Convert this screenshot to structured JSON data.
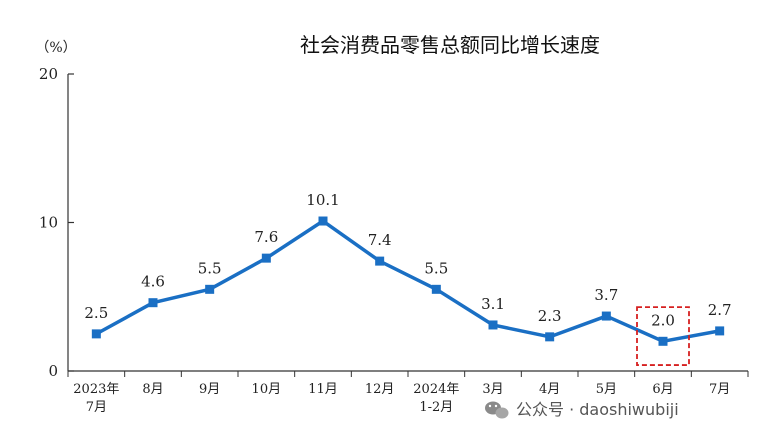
{
  "watermark": {
    "text": "公众号 · daoshiwubiji",
    "icon": "wechat-icon"
  },
  "chart_data": {
    "type": "line",
    "title": "社会消费品零售总额同比增长速度",
    "unit": "（%）",
    "categories": [
      [
        "2023年",
        "7月"
      ],
      [
        "8月"
      ],
      [
        "9月"
      ],
      [
        "10月"
      ],
      [
        "11月"
      ],
      [
        "12月"
      ],
      [
        "2024年",
        "1-2月"
      ],
      [
        "3月"
      ],
      [
        "4月"
      ],
      [
        "5月"
      ],
      [
        "6月"
      ],
      [
        "7月"
      ]
    ],
    "values": [
      2.5,
      4.6,
      5.5,
      7.6,
      10.1,
      7.4,
      5.5,
      3.1,
      2.3,
      3.7,
      2.0,
      2.7
    ],
    "data_labels": [
      "2.5",
      "4.6",
      "5.5",
      "7.6",
      "10.1",
      "7.4",
      "5.5",
      "3.1",
      "2.3",
      "3.7",
      "2.0",
      "2.7"
    ],
    "ylim": [
      0,
      20
    ],
    "yticks": [
      0,
      10,
      20
    ],
    "grid": false,
    "line_color": "#1a6fc4",
    "highlight_index": 10,
    "highlight_color": "#d62020"
  }
}
